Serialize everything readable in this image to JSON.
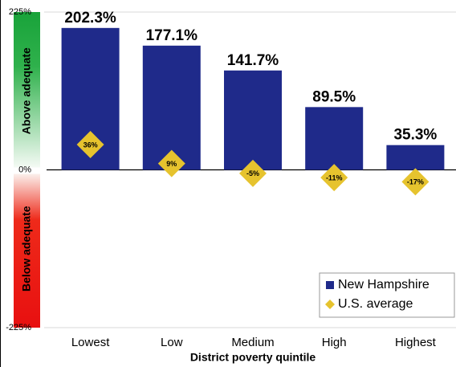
{
  "chart_data": {
    "type": "bar",
    "x_label": "District poverty quintile",
    "categories": [
      "Lowest",
      "Low",
      "Medium",
      "High",
      "Highest"
    ],
    "series": [
      {
        "name": "New Hampshire",
        "color": "#1f2a8a",
        "mark": "bar",
        "values": [
          202.3,
          177.1,
          141.7,
          89.5,
          35.3
        ],
        "value_labels": [
          "202.3%",
          "177.1%",
          "141.7%",
          "89.5%",
          "35.3%"
        ]
      },
      {
        "name": "U.S. average",
        "color": "#e6c32e",
        "mark": "diamond",
        "values": [
          36,
          9,
          -5,
          -11,
          -17
        ],
        "value_labels": [
          "36%",
          "9%",
          "-5%",
          "-11%",
          "-17%"
        ]
      }
    ],
    "ylim": [
      -225,
      225
    ],
    "yticks": [
      {
        "value": -225,
        "label": "-225%"
      },
      {
        "value": 0,
        "label": "0%"
      },
      {
        "value": 225,
        "label": "225%"
      }
    ],
    "annotations": [
      "Above adequate",
      "Below adequate"
    ],
    "legend": "lower right"
  }
}
